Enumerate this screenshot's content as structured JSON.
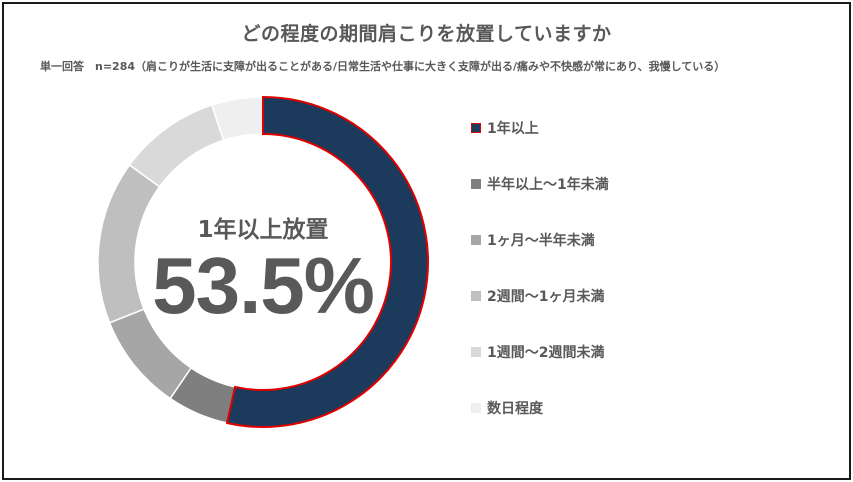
{
  "chart_data": {
    "type": "pie",
    "title": "どの程度の期間肩こりを放置していますか",
    "subtitle": "単一回答　n=284（肩こりが生活に支障が出ることがある/日常生活や仕事に大きく支障が出る/痛みや不快感が常にあり、我慢している）",
    "center_label": "1年以上放置",
    "center_value": "53.5%",
    "legend_position": "right",
    "categories": [
      "1年以上",
      "半年以上～1年未満",
      "1ヶ月～半年未満",
      "2週間～1ヶ月未満",
      "1週間～2週間未満",
      "数日程度"
    ],
    "values": [
      53.5,
      6.0,
      9.5,
      16.0,
      10.0,
      5.0
    ],
    "colors": [
      "#1b3a5c",
      "#7f7f7f",
      "#a6a6a6",
      "#bfbfbf",
      "#d9d9d9",
      "#efefef"
    ],
    "highlight_outline": "#e00000"
  }
}
